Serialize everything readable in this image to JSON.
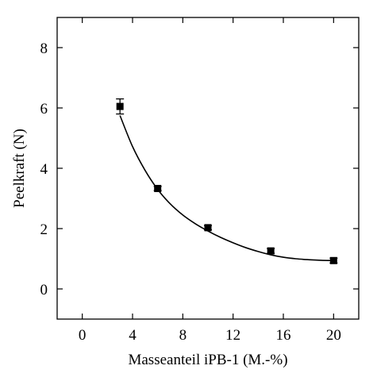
{
  "chart_data": {
    "type": "scatter",
    "xlabel": "Masseanteil iPB-1 (M.-%)",
    "ylabel": "Peelkraft (N)",
    "xlim": [
      -2,
      22
    ],
    "ylim": [
      -1,
      9
    ],
    "xticks": [
      0,
      4,
      8,
      12,
      16,
      20
    ],
    "yticks": [
      0,
      2,
      4,
      6,
      8
    ],
    "xtick_labels": [
      "0",
      "4",
      "8",
      "12",
      "16",
      "20"
    ],
    "ytick_labels": [
      "0",
      "2",
      "4",
      "6",
      "8"
    ],
    "grid": false,
    "legend": "none",
    "series": [
      {
        "marker": "square",
        "color": "#000000",
        "x": [
          3,
          6,
          10,
          15,
          20
        ],
        "y": [
          6.05,
          3.33,
          2.03,
          1.26,
          0.94
        ],
        "error": [
          0.25,
          0.07,
          0.07,
          0.08,
          0.08
        ]
      }
    ],
    "fit_curve": {
      "x": [
        3,
        4,
        5,
        6,
        7,
        8,
        9,
        10,
        11,
        12,
        13,
        14,
        15,
        16,
        17,
        18,
        19,
        20
      ],
      "y": [
        5.75,
        4.72,
        3.93,
        3.3,
        2.82,
        2.45,
        2.16,
        1.92,
        1.71,
        1.53,
        1.37,
        1.24,
        1.13,
        1.05,
        1.0,
        0.97,
        0.95,
        0.94
      ],
      "color": "#000000"
    }
  }
}
